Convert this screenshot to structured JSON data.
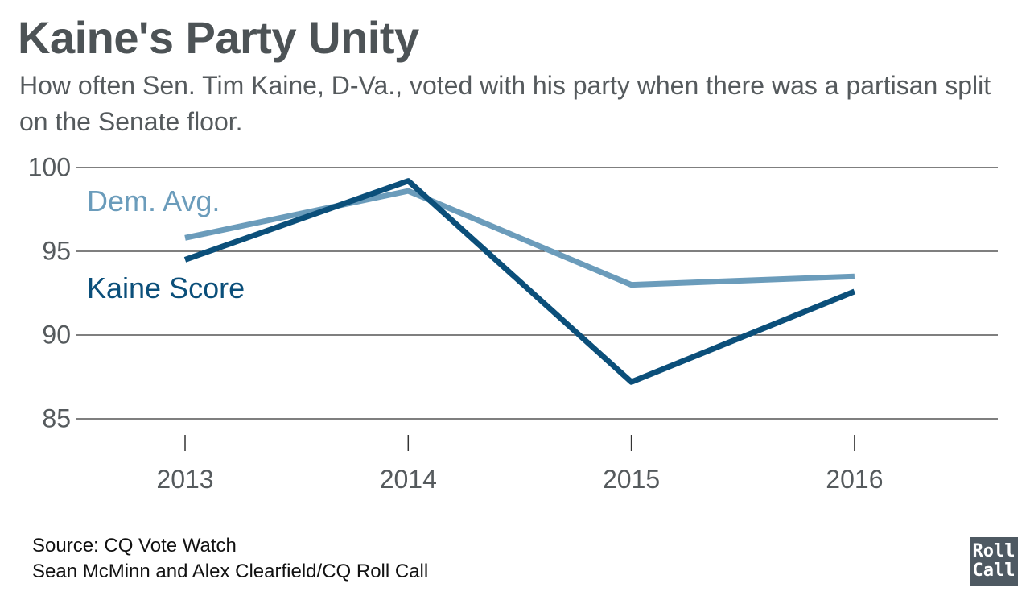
{
  "title": "Kaine's Party Unity",
  "subtitle": "How often Sen. Tim Kaine, D-Va., voted with his party when there was a partisan split on the Senate floor.",
  "source_line1": "Source: CQ Vote Watch",
  "source_line2": "Sean McMinn and Alex Clearfield/CQ Roll Call",
  "logo": {
    "line1": "Roll",
    "line2": "Call"
  },
  "colors": {
    "kaine": "#0b4f7a",
    "dem_avg": "#6b9cbb",
    "grid": "#333333",
    "axis_text": "#555a5d"
  },
  "chart_data": {
    "type": "line",
    "title": "Kaine's Party Unity",
    "x": [
      "2013",
      "2014",
      "2015",
      "2016"
    ],
    "ylim": [
      85,
      100
    ],
    "yticks": [
      85,
      90,
      95,
      100
    ],
    "grid": true,
    "series": [
      {
        "name": "Dem. Avg.",
        "values": [
          95.8,
          98.6,
          93.0,
          93.5
        ],
        "color": "#6b9cbb"
      },
      {
        "name": "Kaine Score",
        "values": [
          94.5,
          99.2,
          87.2,
          92.6
        ],
        "color": "#0b4f7a"
      }
    ]
  }
}
